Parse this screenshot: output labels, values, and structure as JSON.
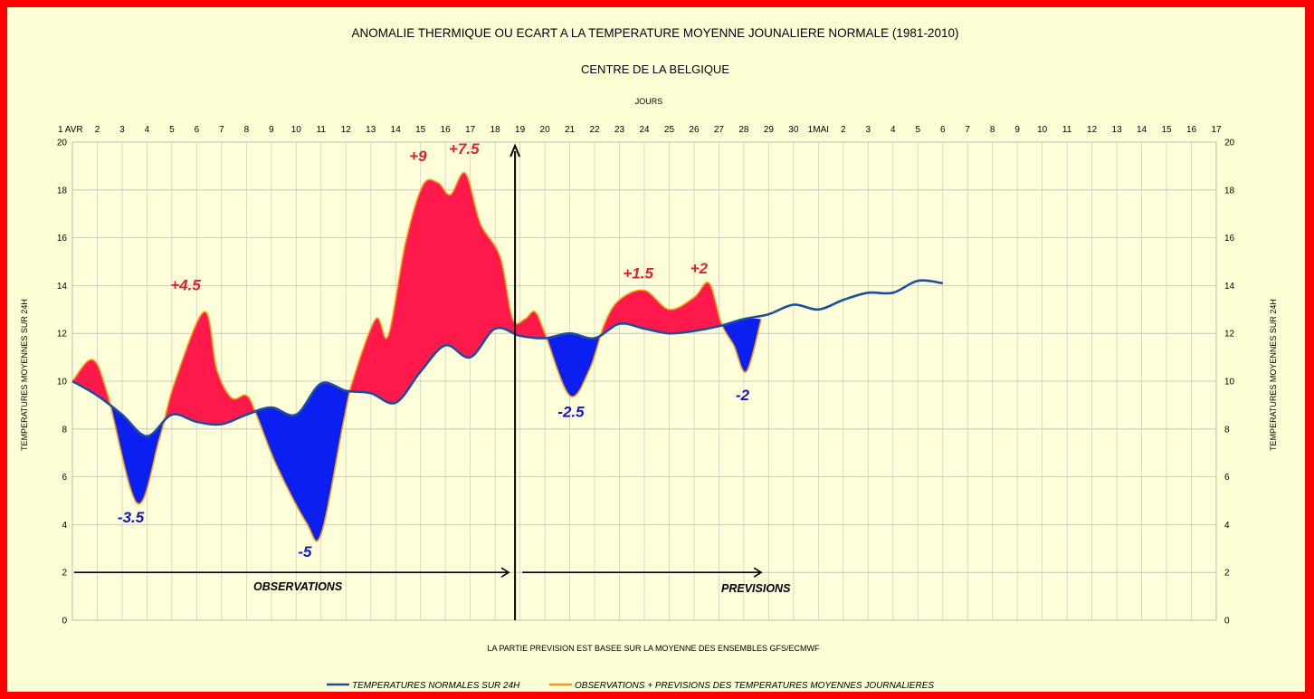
{
  "chart_data": {
    "type": "area",
    "title": "ANOMALIE THERMIQUE OU ECART A LA TEMPERATURE MOYENNE JOUNALIERE NORMALE (1981-2010)",
    "subtitle": "CENTRE DE LA BELGIQUE",
    "xlabel": "JOURS",
    "ylabel_left": "TEMPERATURES MOYENNES SUR 24H",
    "ylabel_right": "TEMPERATURES MOYENNES SUR 24H",
    "footnote": "LA PARTIE PREVISION EST BASEE SUR LA MOYENNE DES ENSEMBLES GFS/ECMWF",
    "ylim": [
      0,
      20
    ],
    "y_ticks": [
      "0",
      "2",
      "4",
      "6",
      "8",
      "10",
      "12",
      "14",
      "16",
      "18",
      "20"
    ],
    "x_tick_labels": [
      "1 AVR",
      "2",
      "3",
      "4",
      "5",
      "6",
      "7",
      "8",
      "9",
      "10",
      "11",
      "12",
      "13",
      "14",
      "15",
      "16",
      "17",
      "18",
      "19",
      "20",
      "21",
      "22",
      "23",
      "24",
      "25",
      "26",
      "27",
      "28",
      "29",
      "30",
      "1MAI",
      "2",
      "3",
      "4",
      "5",
      "6",
      "7",
      "8",
      "9",
      "10",
      "11",
      "12",
      "13",
      "14",
      "15",
      "16",
      "17"
    ],
    "grid": true,
    "legend_position": "bottom",
    "series": [
      {
        "name": "TEMPERATURES NORMALES SUR 24H",
        "color": "#1f4e9a",
        "points": [
          [
            0,
            10.0
          ],
          [
            1,
            9.4
          ],
          [
            2,
            8.6
          ],
          [
            3,
            7.7
          ],
          [
            4,
            8.6
          ],
          [
            5,
            8.3
          ],
          [
            6,
            8.2
          ],
          [
            7,
            8.6
          ],
          [
            8,
            8.9
          ],
          [
            9,
            8.6
          ],
          [
            10,
            9.9
          ],
          [
            11,
            9.6
          ],
          [
            12,
            9.5
          ],
          [
            13,
            9.1
          ],
          [
            14,
            10.4
          ],
          [
            15,
            11.5
          ],
          [
            16,
            11.0
          ],
          [
            17,
            12.2
          ],
          [
            18,
            11.9
          ],
          [
            19,
            11.8
          ],
          [
            20,
            12.0
          ],
          [
            21,
            11.8
          ],
          [
            22,
            12.4
          ],
          [
            23,
            12.2
          ],
          [
            24,
            12.0
          ],
          [
            25,
            12.1
          ],
          [
            26,
            12.3
          ],
          [
            27,
            12.6
          ],
          [
            28,
            12.8
          ],
          [
            29,
            13.2
          ],
          [
            30,
            13.0
          ],
          [
            31,
            13.4
          ],
          [
            32,
            13.7
          ],
          [
            33,
            13.7
          ],
          [
            34,
            14.2
          ],
          [
            35,
            14.1
          ]
        ]
      },
      {
        "name": "OBSERVATIONS + PREVISIONS DES TEMPERATURES MOYENNES JOURNALIERES",
        "color": "#f39c12",
        "points": [
          [
            0,
            10.0
          ],
          [
            0.8,
            10.9
          ],
          [
            1.4,
            9.5
          ],
          [
            2.6,
            4.9
          ],
          [
            3.5,
            7.6
          ],
          [
            4.1,
            9.9
          ],
          [
            5.3,
            12.9
          ],
          [
            5.8,
            10.5
          ],
          [
            6.4,
            9.3
          ],
          [
            7.0,
            9.4
          ],
          [
            7.4,
            8.6
          ],
          [
            8.2,
            6.5
          ],
          [
            9.4,
            4.1
          ],
          [
            10.0,
            3.6
          ],
          [
            10.9,
            8.3
          ],
          [
            11.3,
            10.1
          ],
          [
            12.2,
            12.6
          ],
          [
            12.7,
            11.9
          ],
          [
            13.4,
            15.8
          ],
          [
            14.1,
            18.2
          ],
          [
            14.7,
            18.3
          ],
          [
            15.2,
            17.8
          ],
          [
            15.8,
            18.7
          ],
          [
            16.4,
            16.6
          ],
          [
            17.2,
            15.2
          ],
          [
            17.7,
            12.6
          ],
          [
            18.2,
            12.6
          ],
          [
            18.6,
            12.9
          ],
          [
            19.0,
            12.0
          ],
          [
            20.0,
            9.4
          ],
          [
            20.8,
            10.5
          ],
          [
            21.4,
            12.4
          ],
          [
            22.0,
            13.4
          ],
          [
            23.0,
            13.8
          ],
          [
            24.0,
            13.0
          ],
          [
            25.0,
            13.5
          ],
          [
            25.6,
            14.1
          ],
          [
            26.1,
            12.4
          ],
          [
            26.6,
            11.5
          ],
          [
            27.1,
            10.4
          ],
          [
            27.7,
            12.6
          ]
        ]
      }
    ],
    "forecast_start_x": 17.8,
    "annotations": [
      {
        "text": "-3.5",
        "x": 2.35,
        "y": 4.1,
        "color": "#1414c8"
      },
      {
        "text": "+4.5",
        "x": 4.55,
        "y": 13.8,
        "color": "#e0202f"
      },
      {
        "text": "-5",
        "x": 9.35,
        "y": 2.65,
        "color": "#1414c8"
      },
      {
        "text": "+9",
        "x": 13.9,
        "y": 19.2,
        "color": "#e0202f"
      },
      {
        "text": "+7.5",
        "x": 15.75,
        "y": 19.5,
        "color": "#e0202f"
      },
      {
        "text": "-2.5",
        "x": 20.05,
        "y": 8.5,
        "color": "#1414c8"
      },
      {
        "text": "+1.5",
        "x": 22.75,
        "y": 14.3,
        "color": "#e0202f"
      },
      {
        "text": "+2",
        "x": 25.2,
        "y": 14.5,
        "color": "#e0202f"
      },
      {
        "text": "-2",
        "x": 26.95,
        "y": 9.2,
        "color": "#1414c8"
      }
    ],
    "observations_label": "OBSERVATIONS",
    "previsions_label": "PREVISIONS",
    "fill_above_color": "#ff1a4b",
    "fill_below_color": "#0a1ff0"
  }
}
